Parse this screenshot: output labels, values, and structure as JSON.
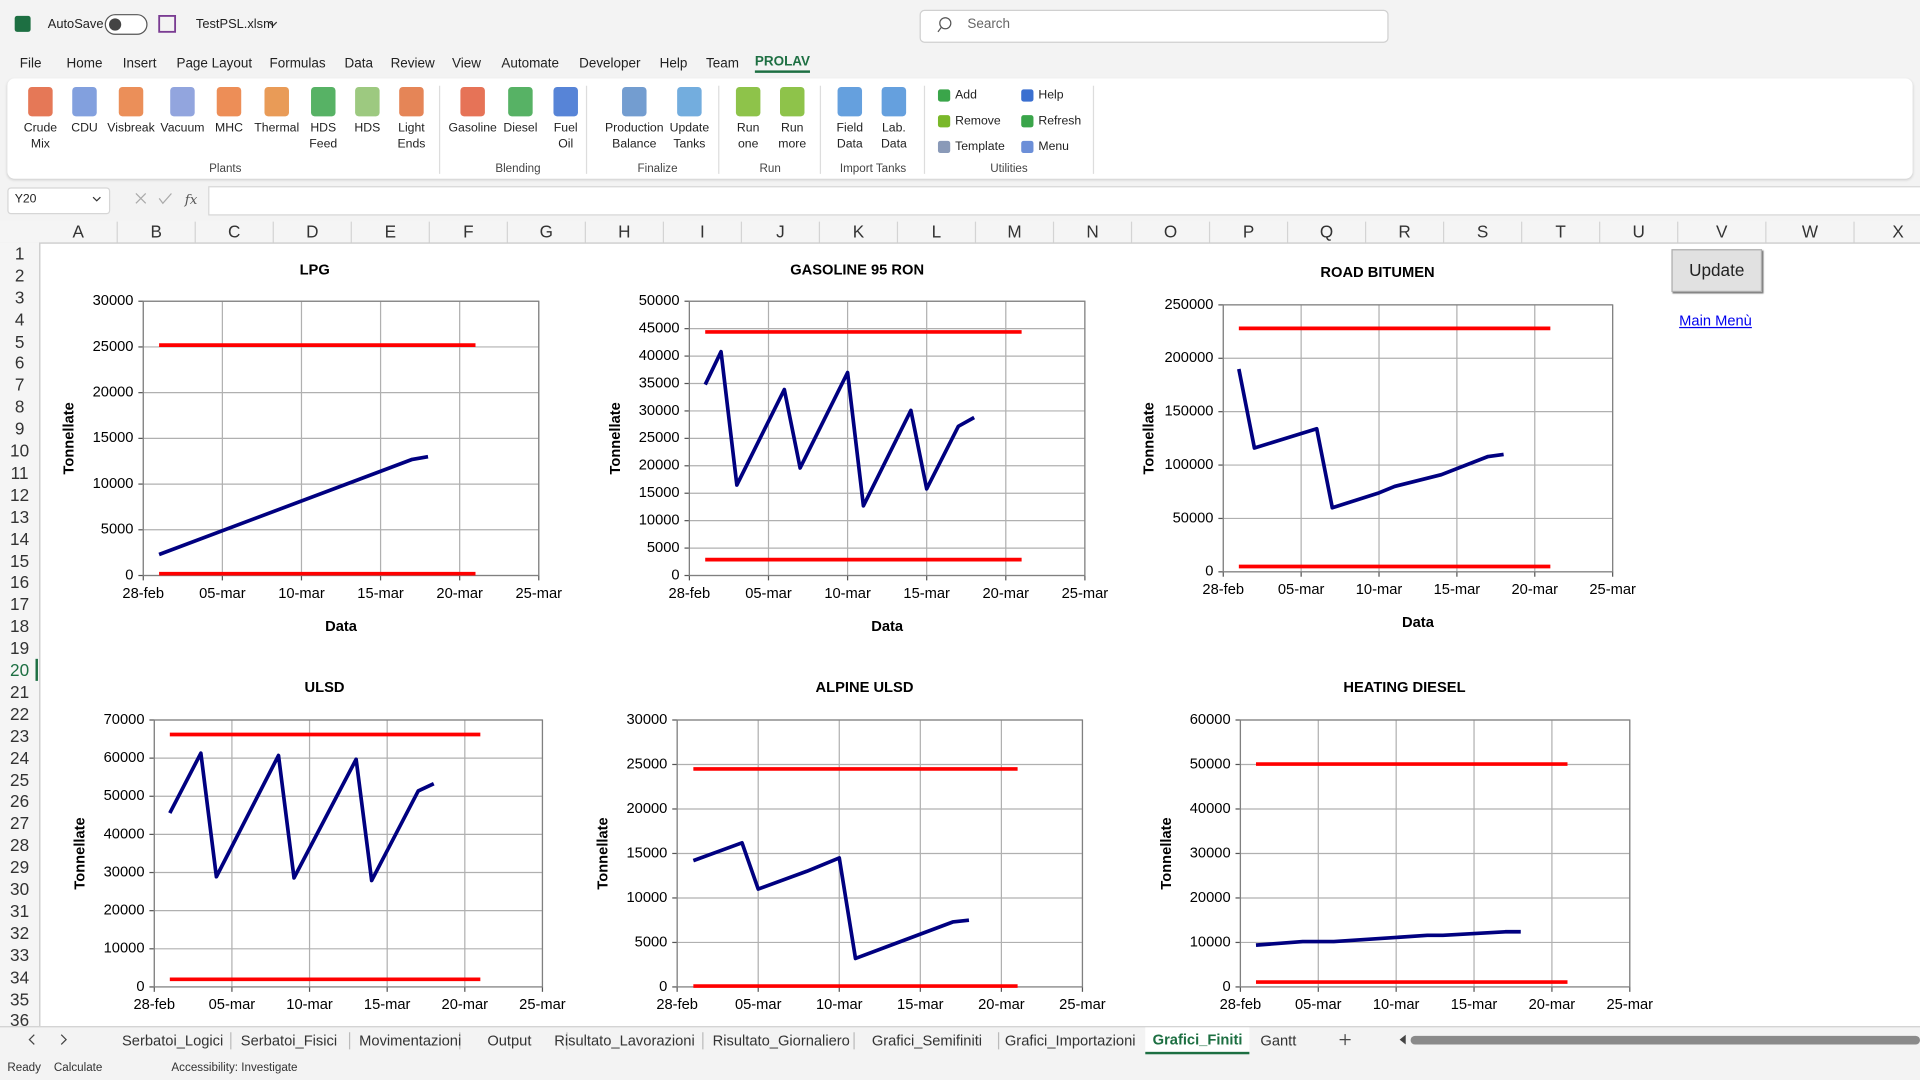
{
  "title_bar": {
    "autosave": "AutoSave",
    "file_name": "TestPSL.xlsm",
    "search": "Search"
  },
  "menu": [
    "File",
    "Home",
    "Insert",
    "Page Layout",
    "Formulas",
    "Data",
    "Review",
    "View",
    "Automate",
    "Developer",
    "Help",
    "Team",
    "PROLAV"
  ],
  "active_menu": 12,
  "ribbon": {
    "groups": [
      {
        "label": "Plants",
        "buttons": [
          [
            "Crude",
            "Mix"
          ],
          [
            "CDU"
          ],
          [
            "Visbreak"
          ],
          [
            "Vacuum"
          ],
          [
            "MHC"
          ],
          [
            "Thermal"
          ],
          [
            "HDS",
            "Feed"
          ],
          [
            "HDS"
          ],
          [
            "Light",
            "Ends"
          ]
        ]
      },
      {
        "label": "Blending",
        "buttons": [
          [
            "Gasoline"
          ],
          [
            "Diesel"
          ],
          [
            "Fuel",
            "Oil"
          ]
        ]
      },
      {
        "label": "Finalize",
        "buttons": [
          [
            "Production",
            "Balance"
          ],
          [
            "Update",
            "Tanks"
          ]
        ]
      },
      {
        "label": "Run",
        "buttons": [
          [
            "Run",
            "one"
          ],
          [
            "Run",
            "more"
          ]
        ]
      },
      {
        "label": "Import Tanks",
        "buttons": [
          [
            "Field",
            "Data"
          ],
          [
            "Lab.",
            "Data"
          ]
        ]
      },
      {
        "label": "Utilities",
        "buttons": [
          [
            "Add"
          ],
          [
            "Remove"
          ],
          [
            "Template"
          ],
          [
            "Help"
          ],
          [
            "Refresh"
          ],
          [
            "Menu"
          ]
        ]
      }
    ]
  },
  "formula_bar": {
    "name_box": "Y20",
    "fx": "fx"
  },
  "columns": [
    "A",
    "B",
    "C",
    "D",
    "E",
    "F",
    "G",
    "H",
    "I",
    "J",
    "K",
    "L",
    "M",
    "N",
    "O",
    "P",
    "Q",
    "R",
    "S",
    "T",
    "U",
    "V",
    "W",
    "X"
  ],
  "rows": [
    1,
    2,
    3,
    4,
    5,
    6,
    7,
    8,
    9,
    10,
    11,
    12,
    13,
    14,
    15,
    16,
    17,
    18,
    19,
    20,
    21,
    22,
    23,
    24,
    25,
    26,
    27,
    28,
    29,
    30,
    31,
    32,
    33,
    34,
    35,
    36
  ],
  "active_row": 20,
  "sheet": {
    "button": "Update",
    "link": "Main Menù"
  },
  "sheet_tabs": [
    "Serbatoi_Logici",
    "Serbatoi_Fisici",
    "Movimentazioni",
    "Output",
    "Risultato_Lavorazioni",
    "Risultato_Giornaliero",
    "Grafici_Semifiniti",
    "Grafici_Importazioni",
    "Grafici_Finiti",
    "Gantt"
  ],
  "active_tab": 8,
  "status_bar": [
    "Ready",
    "Calculate",
    "Accessibility: Investigate"
  ],
  "chart_data": [
    {
      "type": "line",
      "title": "LPG",
      "x_label": "Data",
      "y_label": "Tonnellate",
      "grid": true,
      "xlim": [
        0,
        25
      ],
      "xticks": [
        {
          "value": 0,
          "label": "28-feb"
        },
        {
          "value": 5,
          "label": "05-mar"
        },
        {
          "value": 10,
          "label": "10-mar"
        },
        {
          "value": 15,
          "label": "15-mar"
        },
        {
          "value": 20,
          "label": "20-mar"
        },
        {
          "value": 25,
          "label": "25-mar"
        }
      ],
      "ylim": [
        0,
        30000
      ],
      "yticks": [
        0,
        5000,
        10000,
        15000,
        20000,
        25000,
        30000
      ],
      "series": [
        {
          "color": "#000080",
          "x": [
            1,
            17,
            18
          ],
          "values": [
            2300,
            12700,
            13000
          ]
        },
        {
          "color": "#ff0000",
          "x": [
            1,
            21
          ],
          "values": [
            25200,
            25200
          ]
        },
        {
          "color": "#ff0000",
          "x": [
            1,
            21
          ],
          "values": [
            200,
            200
          ]
        }
      ]
    },
    {
      "type": "line",
      "title": "GASOLINE 95 RON",
      "x_label": "Data",
      "y_label": "Tonnellate",
      "grid": true,
      "xlim": [
        0,
        25
      ],
      "xticks": [
        {
          "value": 0,
          "label": "28-feb"
        },
        {
          "value": 5,
          "label": "05-mar"
        },
        {
          "value": 10,
          "label": "10-mar"
        },
        {
          "value": 15,
          "label": "15-mar"
        },
        {
          "value": 20,
          "label": "20-mar"
        },
        {
          "value": 25,
          "label": "25-mar"
        }
      ],
      "ylim": [
        0,
        50000
      ],
      "yticks": [
        0,
        5000,
        10000,
        15000,
        20000,
        25000,
        30000,
        35000,
        40000,
        45000,
        50000
      ],
      "series": [
        {
          "color": "#000080",
          "x": [
            1,
            2,
            3,
            6,
            7,
            10,
            11,
            14,
            15,
            17,
            18
          ],
          "values": [
            34800,
            40800,
            16500,
            33900,
            19600,
            37000,
            12700,
            30100,
            15800,
            27200,
            28800
          ]
        },
        {
          "color": "#ff0000",
          "x": [
            1,
            21
          ],
          "values": [
            44400,
            44400
          ]
        },
        {
          "color": "#ff0000",
          "x": [
            1,
            21
          ],
          "values": [
            2900,
            2900
          ]
        }
      ]
    },
    {
      "type": "line",
      "title": "ROAD BITUMEN",
      "x_label": "Data",
      "y_label": "Tonnellate",
      "grid": true,
      "xlim": [
        0,
        25
      ],
      "xticks": [
        {
          "value": 0,
          "label": "28-feb"
        },
        {
          "value": 5,
          "label": "05-mar"
        },
        {
          "value": 10,
          "label": "10-mar"
        },
        {
          "value": 15,
          "label": "15-mar"
        },
        {
          "value": 20,
          "label": "20-mar"
        },
        {
          "value": 25,
          "label": "25-mar"
        }
      ],
      "ylim": [
        0,
        250000
      ],
      "yticks": [
        0,
        50000,
        100000,
        150000,
        200000,
        250000
      ],
      "series": [
        {
          "color": "#000080",
          "x": [
            1,
            2,
            6,
            7,
            10,
            11,
            14,
            17,
            18
          ],
          "values": [
            190000,
            116000,
            134000,
            60000,
            74000,
            80000,
            91000,
            108000,
            110000
          ]
        },
        {
          "color": "#ff0000",
          "x": [
            1,
            21
          ],
          "values": [
            228000,
            228000
          ]
        },
        {
          "color": "#ff0000",
          "x": [
            1,
            21
          ],
          "values": [
            5000,
            5000
          ]
        }
      ]
    },
    {
      "type": "line",
      "title": "ULSD",
      "y_label": "Tonnellate",
      "grid": true,
      "xlim": [
        0,
        25
      ],
      "xticks": [
        {
          "value": 0,
          "label": "28-feb"
        },
        {
          "value": 5,
          "label": "05-mar"
        },
        {
          "value": 10,
          "label": "10-mar"
        },
        {
          "value": 15,
          "label": "15-mar"
        },
        {
          "value": 20,
          "label": "20-mar"
        },
        {
          "value": 25,
          "label": "25-mar"
        }
      ],
      "ylim": [
        0,
        70000
      ],
      "yticks": [
        0,
        10000,
        20000,
        30000,
        40000,
        50000,
        60000,
        70000
      ],
      "series": [
        {
          "color": "#000080",
          "x": [
            1,
            3,
            4,
            8,
            9,
            13,
            14,
            17,
            18
          ],
          "values": [
            45600,
            61300,
            28900,
            60700,
            28600,
            59700,
            27900,
            51400,
            53300
          ]
        },
        {
          "color": "#ff0000",
          "x": [
            1,
            21
          ],
          "values": [
            66200,
            66200
          ]
        },
        {
          "color": "#ff0000",
          "x": [
            1,
            21
          ],
          "values": [
            2000,
            2000
          ]
        }
      ]
    },
    {
      "type": "line",
      "title": "ALPINE ULSD",
      "y_label": "Tonnellate",
      "grid": true,
      "xlim": [
        0,
        25
      ],
      "xticks": [
        {
          "value": 0,
          "label": "28-feb"
        },
        {
          "value": 5,
          "label": "05-mar"
        },
        {
          "value": 10,
          "label": "10-mar"
        },
        {
          "value": 15,
          "label": "15-mar"
        },
        {
          "value": 20,
          "label": "20-mar"
        },
        {
          "value": 25,
          "label": "25-mar"
        }
      ],
      "ylim": [
        0,
        30000
      ],
      "yticks": [
        0,
        5000,
        10000,
        15000,
        20000,
        25000,
        30000
      ],
      "series": [
        {
          "color": "#000080",
          "x": [
            1,
            4,
            5,
            8,
            10,
            11,
            17,
            18
          ],
          "values": [
            14200,
            16200,
            11000,
            13000,
            14500,
            3200,
            7300,
            7500
          ]
        },
        {
          "color": "#ff0000",
          "x": [
            1,
            21
          ],
          "values": [
            24500,
            24500
          ]
        },
        {
          "color": "#ff0000",
          "x": [
            1,
            21
          ],
          "values": [
            100,
            100
          ]
        }
      ]
    },
    {
      "type": "line",
      "title": "HEATING DIESEL",
      "y_label": "Tonnellate",
      "grid": true,
      "xlim": [
        0,
        25
      ],
      "xticks": [
        {
          "value": 0,
          "label": "28-feb"
        },
        {
          "value": 5,
          "label": "05-mar"
        },
        {
          "value": 10,
          "label": "10-mar"
        },
        {
          "value": 15,
          "label": "15-mar"
        },
        {
          "value": 20,
          "label": "20-mar"
        },
        {
          "value": 25,
          "label": "25-mar"
        }
      ],
      "ylim": [
        0,
        60000
      ],
      "yticks": [
        0,
        10000,
        20000,
        30000,
        40000,
        50000,
        60000
      ],
      "series": [
        {
          "color": "#000080",
          "x": [
            1,
            4,
            6,
            12,
            13,
            17,
            18
          ],
          "values": [
            9400,
            10200,
            10200,
            11600,
            11600,
            12400,
            12400
          ]
        },
        {
          "color": "#ff0000",
          "x": [
            1,
            21
          ],
          "values": [
            50100,
            50100
          ]
        },
        {
          "color": "#ff0000",
          "x": [
            1,
            21
          ],
          "values": [
            1100,
            1100
          ]
        }
      ]
    }
  ]
}
